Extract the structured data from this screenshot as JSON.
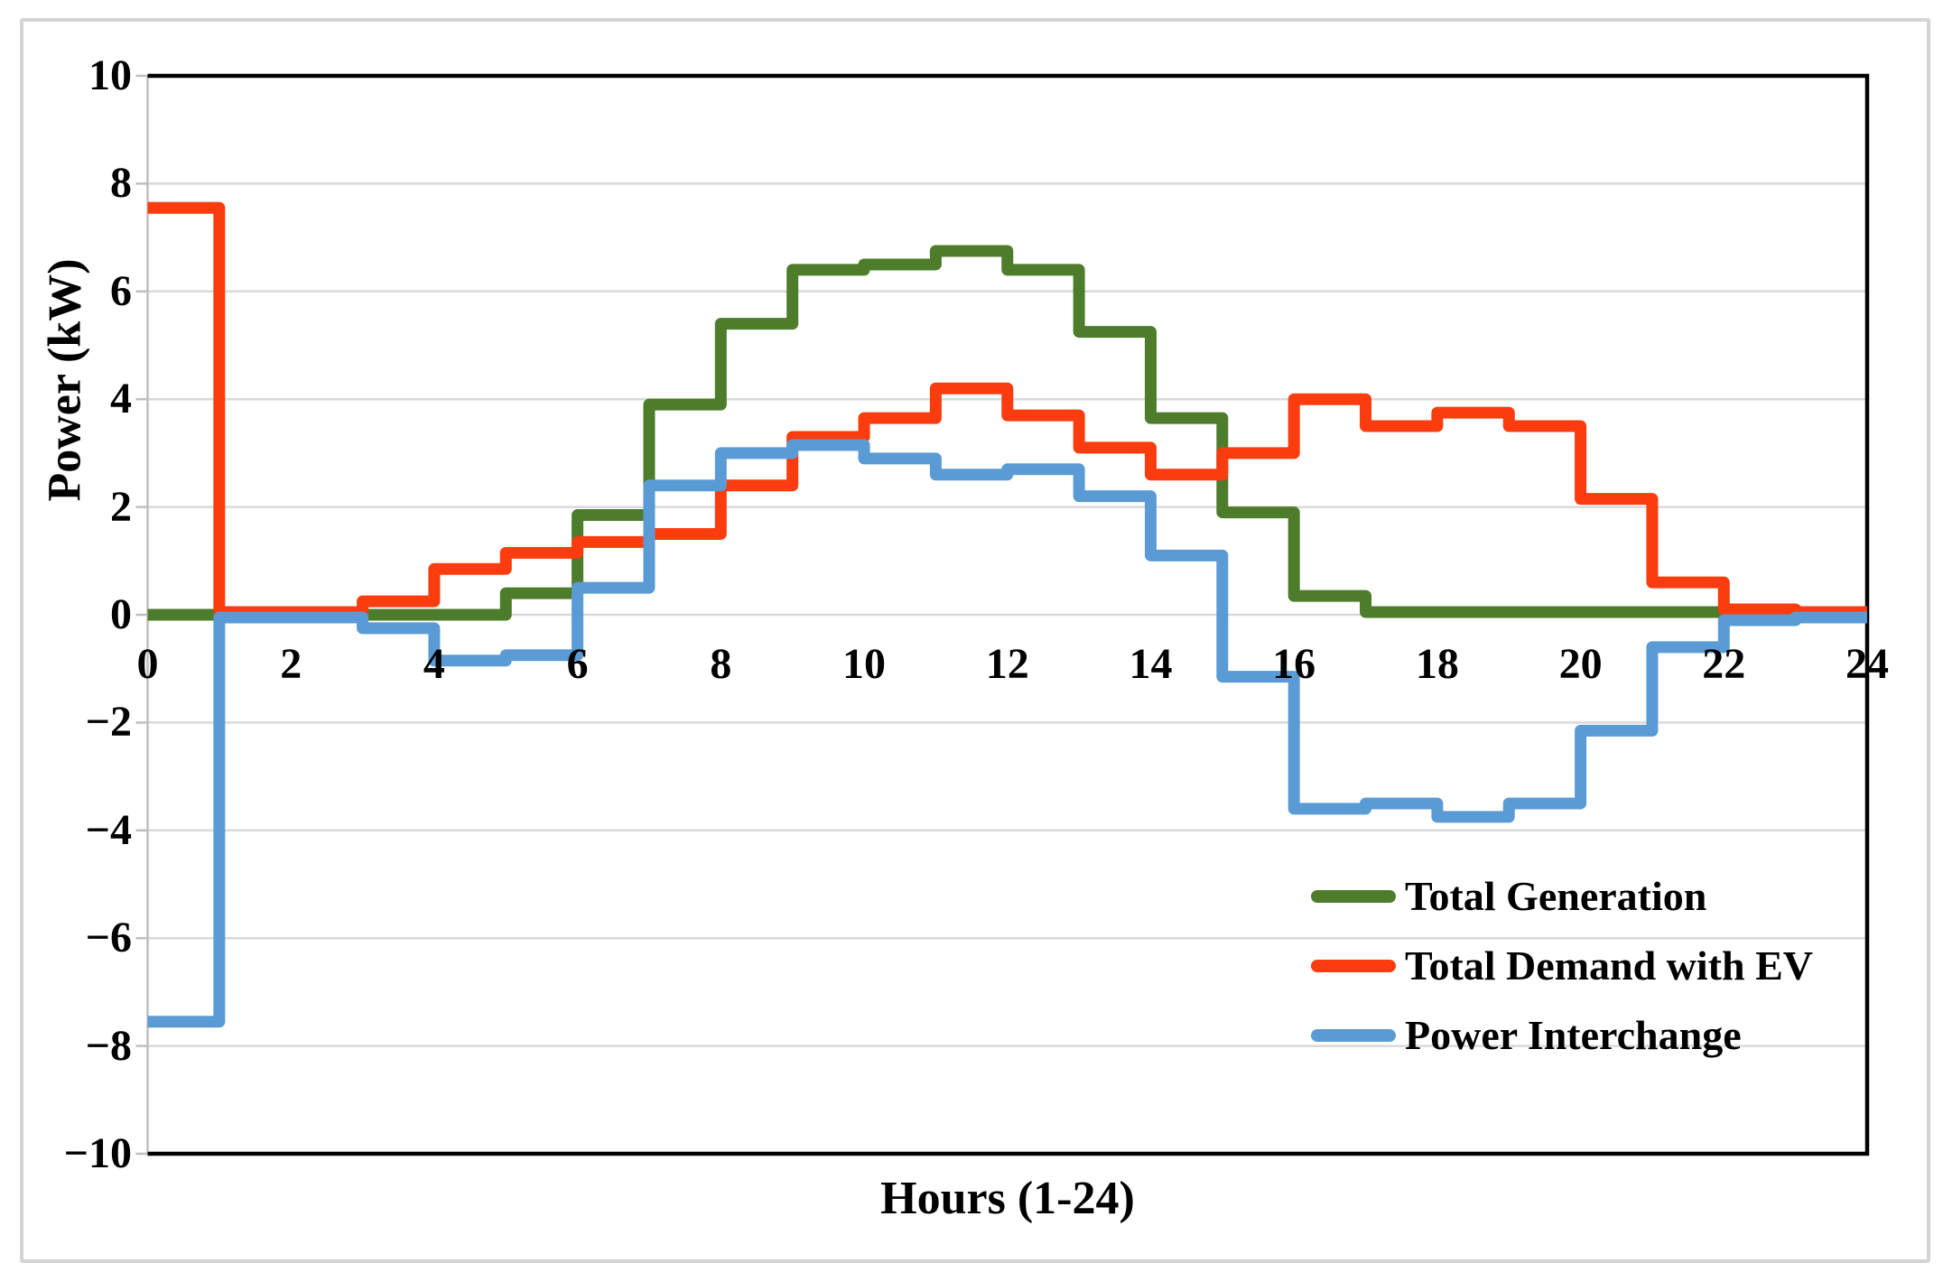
{
  "chart_data": {
    "type": "line",
    "subtype": "step-post",
    "title": "",
    "xlabel": "Hours (1-24)",
    "ylabel": "Power (kW)",
    "xlim": [
      0,
      24
    ],
    "ylim": [
      -10,
      10
    ],
    "grid": true,
    "grid_color": "#d9d9d9",
    "axis_line_color": "#bfbfbf",
    "plot_border_color": "#000000",
    "legend_position": "inside-bottom-right",
    "x_ticks": [
      "0",
      "2",
      "4",
      "6",
      "8",
      "10",
      "12",
      "14",
      "16",
      "18",
      "20",
      "22",
      "24"
    ],
    "x_tick_values": [
      0,
      2,
      4,
      6,
      8,
      10,
      12,
      14,
      16,
      18,
      20,
      22,
      24
    ],
    "y_ticks": [
      "10",
      "8",
      "6",
      "4",
      "2",
      "0",
      "−2",
      "−4",
      "−6",
      "−8",
      "−10"
    ],
    "y_tick_values": [
      10,
      8,
      6,
      4,
      2,
      0,
      -2,
      -4,
      -6,
      -8,
      -10
    ],
    "hours": [
      0,
      1,
      2,
      3,
      4,
      5,
      6,
      7,
      8,
      9,
      10,
      11,
      12,
      13,
      14,
      15,
      16,
      17,
      18,
      19,
      20,
      21,
      22,
      23
    ],
    "series": [
      {
        "name": "Total Generation",
        "color": "#4d7c2b",
        "values": [
          0,
          0,
          0,
          0,
          0,
          0.4,
          1.85,
          3.9,
          5.4,
          6.4,
          6.5,
          6.75,
          6.4,
          5.25,
          3.65,
          1.9,
          0.35,
          0.05,
          0.05,
          0.05,
          0.05,
          0.05,
          0.05,
          0.05
        ]
      },
      {
        "name": "Total Demand with EV",
        "color": "#fa3c0f",
        "values": [
          7.55,
          0.05,
          0.05,
          0.25,
          0.85,
          1.15,
          1.35,
          1.5,
          2.4,
          3.3,
          3.65,
          4.2,
          3.7,
          3.1,
          2.6,
          3.0,
          4.0,
          3.5,
          3.75,
          3.5,
          2.15,
          0.6,
          0.1,
          0.05
        ]
      },
      {
        "name": "Power Interchange",
        "color": "#5b9bd5",
        "values": [
          -7.55,
          -0.05,
          -0.05,
          -0.25,
          -0.85,
          -0.75,
          0.5,
          2.4,
          3.0,
          3.15,
          2.9,
          2.6,
          2.7,
          2.2,
          1.1,
          -1.15,
          -3.6,
          -3.5,
          -3.75,
          -3.5,
          -2.15,
          -0.6,
          -0.1,
          -0.05
        ]
      }
    ]
  }
}
